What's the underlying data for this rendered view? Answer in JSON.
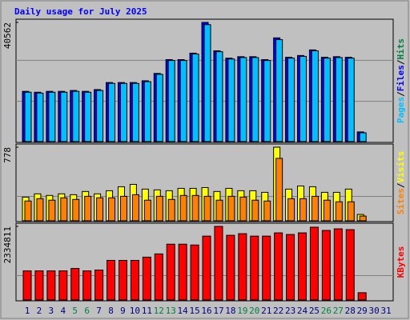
{
  "chart_data": [
    {
      "type": "bar",
      "title": "Daily usage for July 2025",
      "series": [
        {
          "name": "Files",
          "color": "#0000ff",
          "values": [
            17100,
            16800,
            17100,
            17100,
            17400,
            17100,
            17700,
            20100,
            20100,
            20100,
            20700,
            23200,
            27900,
            27900,
            30100,
            40562,
            30900,
            28400,
            28900,
            28900,
            27900,
            35300,
            28700,
            29300,
            31200,
            28700,
            28900,
            28700,
            3300,
            null,
            null
          ]
        },
        {
          "name": "Pages",
          "color": "#00c0ff",
          "values": [
            16800,
            16500,
            16800,
            16800,
            17100,
            16800,
            17400,
            19800,
            19800,
            19800,
            20400,
            22900,
            27600,
            27600,
            29800,
            39800,
            30600,
            28100,
            28600,
            28600,
            27600,
            34700,
            28400,
            29000,
            30900,
            28400,
            28600,
            28400,
            3000,
            null,
            null
          ]
        }
      ],
      "legend": [
        {
          "name": "Pages",
          "color": "#00c0ff"
        },
        {
          "name": "Files",
          "color": "#0000ff"
        },
        {
          "name": "Hits",
          "color": "#008040"
        }
      ],
      "legend_separator": "/",
      "ylim": [
        0,
        40562
      ],
      "yticks": [
        40562
      ]
    },
    {
      "type": "bar",
      "series": [
        {
          "name": "Visits",
          "color": "#ffff00",
          "values": [
            250,
            285,
            268,
            285,
            276,
            310,
            285,
            318,
            360,
            385,
            335,
            327,
            318,
            343,
            343,
            351,
            310,
            343,
            318,
            318,
            301,
            778,
            335,
            368,
            360,
            301,
            301,
            335,
            67,
            null,
            null
          ]
        },
        {
          "name": "Sites",
          "color": "#ff8000",
          "values": [
            209,
            234,
            218,
            243,
            226,
            259,
            243,
            243,
            259,
            276,
            218,
            259,
            226,
            268,
            268,
            259,
            218,
            259,
            251,
            218,
            209,
            660,
            234,
            234,
            259,
            218,
            201,
            201,
            50,
            null,
            null
          ]
        }
      ],
      "legend": [
        {
          "name": "Sites",
          "color": "#ff8000"
        },
        {
          "name": "Visits",
          "color": "#ffff00"
        }
      ],
      "legend_separator": "/",
      "ylim": [
        0,
        778
      ],
      "yticks": [
        778
      ]
    },
    {
      "type": "bar",
      "series": [
        {
          "name": "KBytes",
          "color": "#ff0000",
          "values": [
            924000,
            924000,
            924000,
            924000,
            1000600,
            924000,
            949300,
            1257000,
            1257000,
            1257000,
            1359800,
            1462400,
            1770400,
            1770400,
            1744700,
            2026900,
            2334811,
            2052600,
            2103900,
            2026900,
            2026900,
            2129500,
            2078200,
            2129500,
            2309100,
            2206500,
            2257800,
            2232100,
            230900,
            null,
            null
          ]
        }
      ],
      "legend": [
        {
          "name": "KBytes",
          "color": "#ff0000"
        }
      ],
      "ylim": [
        0,
        2334811
      ],
      "yticks": [
        2334811
      ],
      "categories": [
        "1",
        "2",
        "3",
        "4",
        "5",
        "6",
        "7",
        "8",
        "9",
        "10",
        "11",
        "12",
        "13",
        "14",
        "15",
        "16",
        "17",
        "18",
        "19",
        "20",
        "21",
        "22",
        "23",
        "24",
        "25",
        "26",
        "27",
        "28",
        "29",
        "30",
        "31"
      ],
      "category_colors": [
        "#000080",
        "#000080",
        "#000080",
        "#000080",
        "#008040",
        "#008040",
        "#000080",
        "#000080",
        "#000080",
        "#000080",
        "#000080",
        "#008040",
        "#008040",
        "#000080",
        "#000080",
        "#000080",
        "#000080",
        "#000080",
        "#008040",
        "#008040",
        "#000080",
        "#000080",
        "#000080",
        "#000080",
        "#000080",
        "#008040",
        "#008040",
        "#000080",
        "#000080",
        "#000080",
        "#000080"
      ]
    }
  ]
}
